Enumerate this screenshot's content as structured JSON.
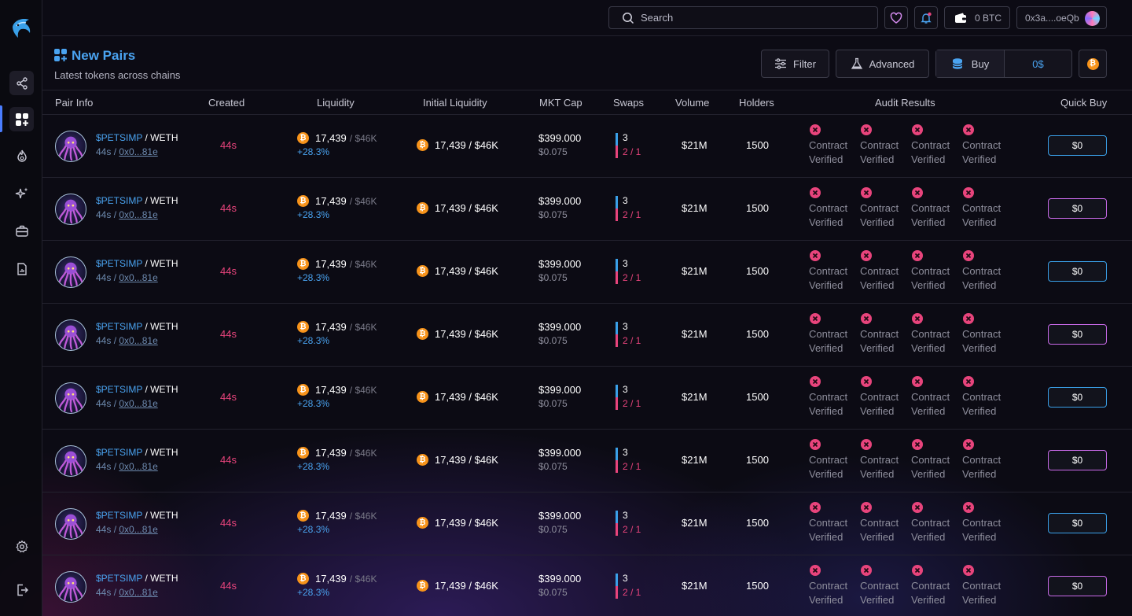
{
  "topbar": {
    "search_placeholder": "Search",
    "btc_balance": "0 BTC",
    "wallet_address": "0x3a....oeQb"
  },
  "header": {
    "title": "New Pairs",
    "subtitle": "Latest tokens across chains",
    "filter_label": "Filter",
    "advanced_label": "Advanced",
    "buy_label": "Buy",
    "buy_amount": "0$",
    "coin_symbol": "₿"
  },
  "columns": {
    "pair_info": "Pair Info",
    "created": "Created",
    "liquidity": "Liquidity",
    "initial_liquidity": "Initial Liquidity",
    "mkt_cap": "MKT Cap",
    "swaps": "Swaps",
    "volume": "Volume",
    "holders": "Holders",
    "audit_results": "Audit Results",
    "quick_buy": "Quick Buy"
  },
  "rows": [
    {
      "symbol": "$PETSIMP",
      "quote": "WETH",
      "age": "44s",
      "address": "0x0...81e",
      "created": "44s",
      "liq_value": "17,439",
      "liq_total": "$46K",
      "liq_change": "+28.3%",
      "init_liq": "17,439 / $46K",
      "mcap": "$399.000",
      "price": "$0.075",
      "swaps_total": "3",
      "swaps_split": "2 / 1",
      "volume": "$21M",
      "holders": "1500",
      "audit": [
        "Contract Verified",
        "Contract Verified",
        "Contract Verified",
        "Contract Verified"
      ],
      "quick_buy": "$0",
      "quick_style": "blue"
    },
    {
      "symbol": "$PETSIMP",
      "quote": "WETH",
      "age": "44s",
      "address": "0x0...81e",
      "created": "44s",
      "liq_value": "17,439",
      "liq_total": "$46K",
      "liq_change": "+28.3%",
      "init_liq": "17,439 / $46K",
      "mcap": "$399.000",
      "price": "$0.075",
      "swaps_total": "3",
      "swaps_split": "2 / 1",
      "volume": "$21M",
      "holders": "1500",
      "audit": [
        "Contract Verified",
        "Contract Verified",
        "Contract Verified",
        "Contract Verified"
      ],
      "quick_buy": "$0",
      "quick_style": "pink"
    },
    {
      "symbol": "$PETSIMP",
      "quote": "WETH",
      "age": "44s",
      "address": "0x0...81e",
      "created": "44s",
      "liq_value": "17,439",
      "liq_total": "$46K",
      "liq_change": "+28.3%",
      "init_liq": "17,439 / $46K",
      "mcap": "$399.000",
      "price": "$0.075",
      "swaps_total": "3",
      "swaps_split": "2 / 1",
      "volume": "$21M",
      "holders": "1500",
      "audit": [
        "Contract Verified",
        "Contract Verified",
        "Contract Verified",
        "Contract Verified"
      ],
      "quick_buy": "$0",
      "quick_style": "blue"
    },
    {
      "symbol": "$PETSIMP",
      "quote": "WETH",
      "age": "44s",
      "address": "0x0...81e",
      "created": "44s",
      "liq_value": "17,439",
      "liq_total": "$46K",
      "liq_change": "+28.3%",
      "init_liq": "17,439 / $46K",
      "mcap": "$399.000",
      "price": "$0.075",
      "swaps_total": "3",
      "swaps_split": "2 / 1",
      "volume": "$21M",
      "holders": "1500",
      "audit": [
        "Contract Verified",
        "Contract Verified",
        "Contract Verified",
        "Contract Verified"
      ],
      "quick_buy": "$0",
      "quick_style": "pink"
    },
    {
      "symbol": "$PETSIMP",
      "quote": "WETH",
      "age": "44s",
      "address": "0x0...81e",
      "created": "44s",
      "liq_value": "17,439",
      "liq_total": "$46K",
      "liq_change": "+28.3%",
      "init_liq": "17,439 / $46K",
      "mcap": "$399.000",
      "price": "$0.075",
      "swaps_total": "3",
      "swaps_split": "2 / 1",
      "volume": "$21M",
      "holders": "1500",
      "audit": [
        "Contract Verified",
        "Contract Verified",
        "Contract Verified",
        "Contract Verified"
      ],
      "quick_buy": "$0",
      "quick_style": "blue"
    },
    {
      "symbol": "$PETSIMP",
      "quote": "WETH",
      "age": "44s",
      "address": "0x0...81e",
      "created": "44s",
      "liq_value": "17,439",
      "liq_total": "$46K",
      "liq_change": "+28.3%",
      "init_liq": "17,439 / $46K",
      "mcap": "$399.000",
      "price": "$0.075",
      "swaps_total": "3",
      "swaps_split": "2 / 1",
      "volume": "$21M",
      "holders": "1500",
      "audit": [
        "Contract Verified",
        "Contract Verified",
        "Contract Verified",
        "Contract Verified"
      ],
      "quick_buy": "$0",
      "quick_style": "pink"
    },
    {
      "symbol": "$PETSIMP",
      "quote": "WETH",
      "age": "44s",
      "address": "0x0...81e",
      "created": "44s",
      "liq_value": "17,439",
      "liq_total": "$46K",
      "liq_change": "+28.3%",
      "init_liq": "17,439 / $46K",
      "mcap": "$399.000",
      "price": "$0.075",
      "swaps_total": "3",
      "swaps_split": "2 / 1",
      "volume": "$21M",
      "holders": "1500",
      "audit": [
        "Contract Verified",
        "Contract Verified",
        "Contract Verified",
        "Contract Verified"
      ],
      "quick_buy": "$0",
      "quick_style": "blue"
    },
    {
      "symbol": "$PETSIMP",
      "quote": "WETH",
      "age": "44s",
      "address": "0x0...81e",
      "created": "44s",
      "liq_value": "17,439",
      "liq_total": "$46K",
      "liq_change": "+28.3%",
      "init_liq": "17,439 / $46K",
      "mcap": "$399.000",
      "price": "$0.075",
      "swaps_total": "3",
      "swaps_split": "2 / 1",
      "volume": "$21M",
      "holders": "1500",
      "audit": [
        "Contract Verified",
        "Contract Verified",
        "Contract Verified",
        "Contract Verified"
      ],
      "quick_buy": "$0",
      "quick_style": "pink"
    }
  ],
  "colors": {
    "accent_blue": "#4aa3f0",
    "accent_pink": "#e8447c",
    "bitcoin": "#f7931a"
  }
}
